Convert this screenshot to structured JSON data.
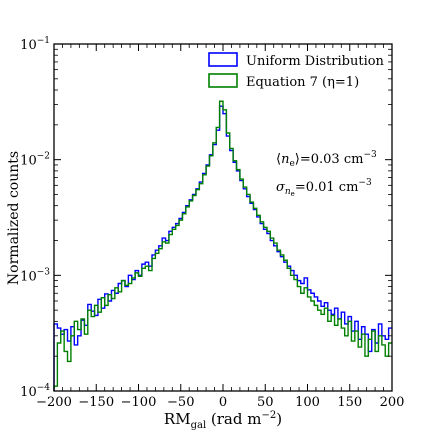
{
  "chart_data": {
    "type": "line",
    "title": "",
    "xlabel": "RM",
    "xlabel_sub": "gal",
    "xlabel_units": " (rad m",
    "xlabel_exp": "−2",
    "xlabel_close": ")",
    "ylabel": "Normalized  counts",
    "xlim": [
      -200,
      200
    ],
    "ylim": [
      0.0001,
      0.1
    ],
    "yscale": "log",
    "grid": false,
    "legend_position": "top-right",
    "x_ticks": [
      -200,
      -150,
      -100,
      -50,
      0,
      50,
      100,
      150,
      200
    ],
    "x_tick_labels": [
      "−200",
      "−150",
      "−100",
      "−50",
      "0",
      "50",
      "100",
      "150",
      "200"
    ],
    "y_ticks": [
      {
        "value": 0.1,
        "base": "10",
        "exp": "−1"
      },
      {
        "value": 0.01,
        "base": "10",
        "exp": "−2"
      },
      {
        "value": 0.001,
        "base": "10",
        "exp": "−3"
      },
      {
        "value": 0.0001,
        "base": "10",
        "exp": "−4"
      }
    ],
    "annotations": [
      {
        "id": "mean-ne",
        "line1_a": "⟨",
        "line1_b": "n",
        "line1_sub": "e",
        "line1_c": "⟩=0.03 cm",
        "line1_exp": "−3"
      },
      {
        "id": "sigma-ne",
        "line2_a": "σ",
        "line2_sub": "n",
        "line2_subsub": "e",
        "line2_c": "=0.01 cm",
        "line2_exp": "−3"
      }
    ],
    "series": [
      {
        "name": "Uniform Distribution",
        "color": "#0000ff",
        "bin_width": 4,
        "x": [
          -198,
          -194,
          -190,
          -186,
          -182,
          -178,
          -174,
          -170,
          -166,
          -162,
          -158,
          -154,
          -150,
          -146,
          -142,
          -138,
          -134,
          -130,
          -126,
          -122,
          -118,
          -114,
          -110,
          -106,
          -102,
          -98,
          -94,
          -90,
          -86,
          -82,
          -78,
          -74,
          -70,
          -66,
          -62,
          -58,
          -54,
          -50,
          -46,
          -42,
          -38,
          -34,
          -30,
          -26,
          -22,
          -18,
          -14,
          -10,
          -6,
          -2,
          2,
          6,
          10,
          14,
          18,
          22,
          26,
          30,
          34,
          38,
          42,
          46,
          50,
          54,
          58,
          62,
          66,
          70,
          74,
          78,
          82,
          86,
          90,
          94,
          98,
          102,
          106,
          110,
          114,
          118,
          122,
          126,
          130,
          134,
          138,
          142,
          146,
          150,
          154,
          158,
          162,
          166,
          170,
          174,
          178,
          182,
          186,
          190,
          194,
          198
        ],
        "values": [
          0.00038,
          0.00035,
          0.00031,
          0.00034,
          0.00027,
          0.00036,
          0.00025,
          0.0003,
          0.00041,
          0.00037,
          0.00056,
          0.00049,
          0.00045,
          0.00062,
          0.00052,
          0.00069,
          0.0006,
          0.00074,
          0.0007,
          0.00085,
          0.0009,
          0.0008,
          0.001,
          0.00092,
          0.0011,
          0.001,
          0.00125,
          0.0013,
          0.0012,
          0.0015,
          0.00165,
          0.0018,
          0.0021,
          0.002,
          0.0024,
          0.0026,
          0.0028,
          0.0031,
          0.0035,
          0.004,
          0.0045,
          0.005,
          0.0056,
          0.0064,
          0.0076,
          0.009,
          0.011,
          0.0135,
          0.018,
          0.029,
          0.025,
          0.016,
          0.012,
          0.0095,
          0.008,
          0.0066,
          0.0056,
          0.0048,
          0.0042,
          0.0037,
          0.0032,
          0.0028,
          0.0025,
          0.0023,
          0.002,
          0.0018,
          0.0016,
          0.00145,
          0.0013,
          0.0012,
          0.0011,
          0.001,
          0.0009,
          0.00085,
          0.00095,
          0.00075,
          0.0007,
          0.00065,
          0.0006,
          0.00054,
          0.00058,
          0.0005,
          0.00046,
          0.00052,
          0.00042,
          0.00048,
          0.00038,
          0.00044,
          0.00033,
          0.0004,
          0.00028,
          0.00036,
          0.00031,
          0.00022,
          0.00034,
          0.00026,
          0.00038,
          0.0003,
          0.00028,
          0.00035
        ]
      },
      {
        "name": "Equation 7 (η=1)",
        "color": "#008000",
        "bin_width": 4,
        "x": [
          -198,
          -194,
          -190,
          -186,
          -182,
          -178,
          -174,
          -170,
          -166,
          -162,
          -158,
          -154,
          -150,
          -146,
          -142,
          -138,
          -134,
          -130,
          -126,
          -122,
          -118,
          -114,
          -110,
          -106,
          -102,
          -98,
          -94,
          -90,
          -86,
          -82,
          -78,
          -74,
          -70,
          -66,
          -62,
          -58,
          -54,
          -50,
          -46,
          -42,
          -38,
          -34,
          -30,
          -26,
          -22,
          -18,
          -14,
          -10,
          -6,
          -2,
          2,
          6,
          10,
          14,
          18,
          22,
          26,
          30,
          34,
          38,
          42,
          46,
          50,
          54,
          58,
          62,
          66,
          70,
          74,
          78,
          82,
          86,
          90,
          94,
          98,
          102,
          106,
          110,
          114,
          118,
          122,
          126,
          130,
          134,
          138,
          142,
          146,
          150,
          154,
          158,
          162,
          166,
          170,
          174,
          178,
          182,
          186,
          190,
          194,
          198
        ],
        "values": [
          0.00011,
          0.00026,
          0.00033,
          0.00022,
          0.00018,
          0.0003,
          0.0004,
          0.00034,
          0.00042,
          0.00031,
          0.0005,
          0.00044,
          0.00055,
          0.00048,
          0.00064,
          0.00055,
          0.00068,
          0.00063,
          0.00078,
          0.00072,
          0.0009,
          0.00082,
          0.00085,
          0.00095,
          0.00105,
          0.00098,
          0.00115,
          0.0012,
          0.0011,
          0.0014,
          0.00155,
          0.0017,
          0.00195,
          0.0019,
          0.00225,
          0.0025,
          0.0027,
          0.003,
          0.0034,
          0.0039,
          0.0044,
          0.0049,
          0.0055,
          0.0062,
          0.0074,
          0.0088,
          0.0108,
          0.014,
          0.019,
          0.032,
          0.027,
          0.017,
          0.0125,
          0.0098,
          0.0082,
          0.0068,
          0.0058,
          0.005,
          0.0043,
          0.0038,
          0.0033,
          0.0029,
          0.0026,
          0.0024,
          0.0021,
          0.0019,
          0.00165,
          0.0015,
          0.00135,
          0.00115,
          0.001,
          0.00092,
          0.0008,
          0.0007,
          0.00078,
          0.00065,
          0.0006,
          0.00055,
          0.0005,
          0.00046,
          0.00052,
          0.0004,
          0.00045,
          0.00037,
          0.00042,
          0.00035,
          0.0003,
          0.0004,
          0.00027,
          0.00033,
          0.00024,
          0.00031,
          0.0002,
          0.00028,
          0.00033,
          0.00022,
          0.0003,
          0.00025,
          0.0002,
          0.00026
        ]
      }
    ]
  }
}
